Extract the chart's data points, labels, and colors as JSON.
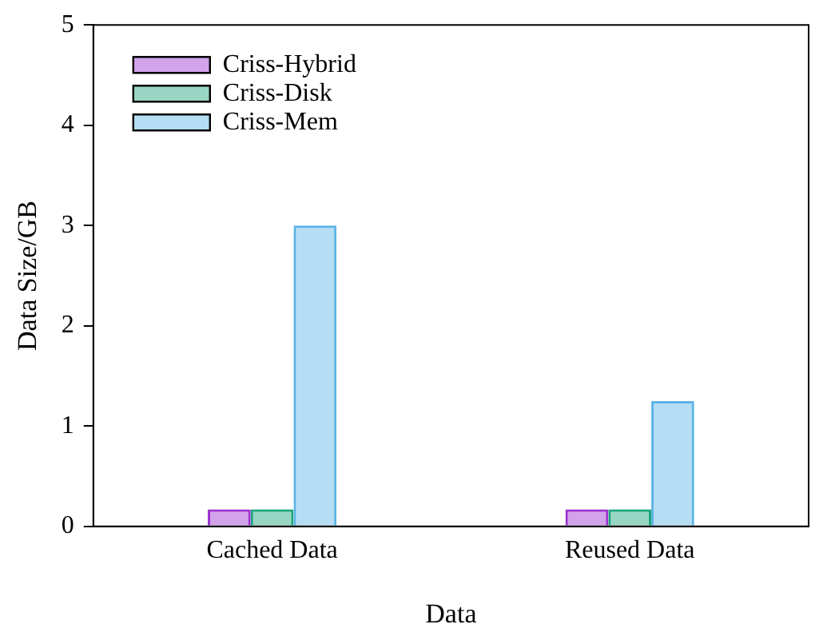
{
  "chart_data": {
    "type": "bar",
    "xlabel": "Data",
    "ylabel": "Data Size/GB",
    "categories": [
      "Cached Data",
      "Reused Data"
    ],
    "series": [
      {
        "name": "Criss-Hybrid",
        "color": "#9b30d0",
        "values": [
          0.17,
          0.17
        ]
      },
      {
        "name": "Criss-Disk",
        "color": "#1aa37a",
        "values": [
          0.17,
          0.17
        ]
      },
      {
        "name": "Criss-Mem",
        "color": "#5ab4e6",
        "values": [
          3.0,
          1.25
        ]
      }
    ],
    "ylim": [
      0,
      5
    ],
    "yticks": [
      0,
      1,
      2,
      3,
      4,
      5
    ],
    "grid": false,
    "legend": "top left"
  }
}
